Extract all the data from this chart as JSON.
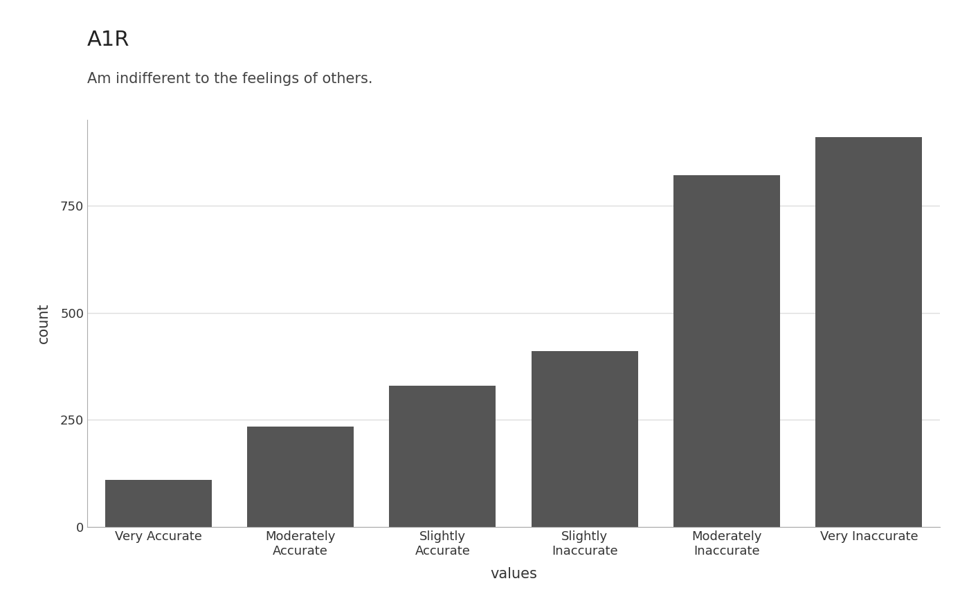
{
  "title": "A1R",
  "subtitle": "Am indifferent to the feelings of others.",
  "categories": [
    "Very Accurate",
    "Moderately\nAccurate",
    "Slightly\nAccurate",
    "Slightly\nInaccurate",
    "Moderately\nInaccurate",
    "Very Inaccurate"
  ],
  "values": [
    110,
    235,
    330,
    410,
    820,
    910
  ],
  "bar_color": "#555555",
  "xlabel": "values",
  "ylabel": "count",
  "ylim": [
    0,
    950
  ],
  "yticks": [
    0,
    250,
    500,
    750
  ],
  "background_color": "#ffffff",
  "plot_bg_color": "#ffffff",
  "grid_color": "#dddddd",
  "title_fontsize": 22,
  "subtitle_fontsize": 15,
  "axis_label_fontsize": 15,
  "tick_fontsize": 13,
  "bar_width": 0.75
}
